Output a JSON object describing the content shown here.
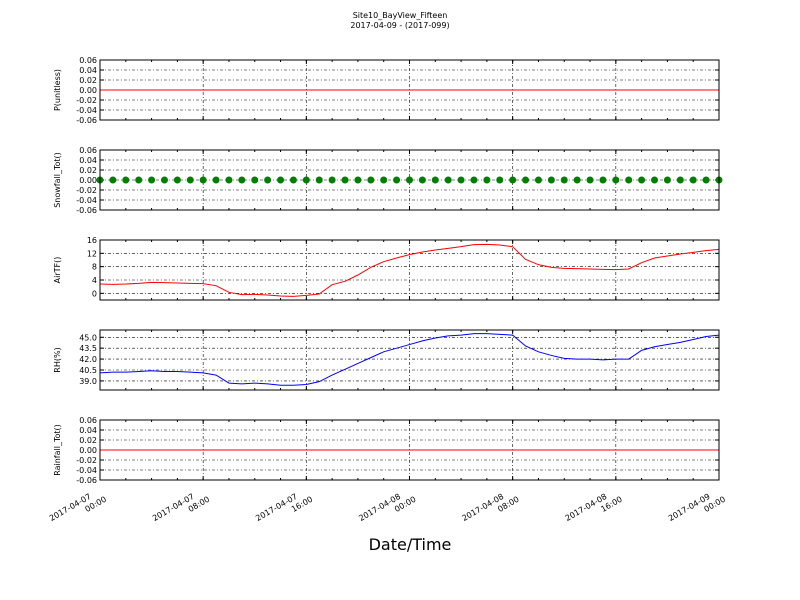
{
  "title": "Site10_BayView_Fifteen",
  "subtitle": "2017-04-09 - (2017-099)",
  "xlabel": "Date/Time",
  "x": [
    "2017-04-07 00:00",
    "2017-04-07 01:00",
    "2017-04-07 02:00",
    "2017-04-07 03:00",
    "2017-04-07 04:00",
    "2017-04-07 05:00",
    "2017-04-07 06:00",
    "2017-04-07 07:00",
    "2017-04-07 08:00",
    "2017-04-07 09:00",
    "2017-04-07 10:00",
    "2017-04-07 11:00",
    "2017-04-07 12:00",
    "2017-04-07 13:00",
    "2017-04-07 14:00",
    "2017-04-07 15:00",
    "2017-04-07 16:00",
    "2017-04-07 17:00",
    "2017-04-07 18:00",
    "2017-04-07 19:00",
    "2017-04-07 20:00",
    "2017-04-07 21:00",
    "2017-04-07 22:00",
    "2017-04-07 23:00",
    "2017-04-08 00:00",
    "2017-04-08 01:00",
    "2017-04-08 02:00",
    "2017-04-08 03:00",
    "2017-04-08 04:00",
    "2017-04-08 05:00",
    "2017-04-08 06:00",
    "2017-04-08 07:00",
    "2017-04-08 08:00",
    "2017-04-08 09:00",
    "2017-04-08 10:00",
    "2017-04-08 11:00",
    "2017-04-08 12:00",
    "2017-04-08 13:00",
    "2017-04-08 14:00",
    "2017-04-08 15:00",
    "2017-04-08 16:00",
    "2017-04-08 17:00",
    "2017-04-08 18:00",
    "2017-04-08 19:00",
    "2017-04-08 20:00",
    "2017-04-08 21:00",
    "2017-04-08 22:00",
    "2017-04-08 23:00",
    "2017-04-09 00:00"
  ],
  "xlim": [
    "2017-04-07 00:00",
    "2017-04-09 00:00"
  ],
  "xticks": [
    "2017-04-07 00:00",
    "2017-04-07 08:00",
    "2017-04-07 16:00",
    "2017-04-08 00:00",
    "2017-04-08 08:00",
    "2017-04-08 16:00",
    "2017-04-09 00:00"
  ],
  "chart_data": [
    {
      "type": "line",
      "ylabel": "P(unitless)",
      "ylim": [
        -0.06,
        0.06
      ],
      "grid": true,
      "yticks": [
        -0.06,
        -0.04,
        -0.02,
        {
          "value": 0,
          "label": "0.00"
        },
        0.02,
        0.04,
        0.06
      ],
      "series": [
        {
          "color": "#ff0000",
          "values": [
            0,
            0,
            0,
            0,
            0,
            0,
            0,
            0,
            0,
            0,
            0,
            0,
            0,
            0,
            0,
            0,
            0,
            0,
            0,
            0,
            0,
            0,
            0,
            0,
            0,
            0,
            0,
            0,
            0,
            0,
            0,
            0,
            0,
            0,
            0,
            0,
            0,
            0,
            0,
            0,
            0,
            0,
            0,
            0,
            0,
            0,
            0,
            0,
            0
          ]
        }
      ]
    },
    {
      "type": "scatter",
      "ylabel": "Snowfall_Tot()",
      "ylim": [
        -0.06,
        0.06
      ],
      "grid": true,
      "yticks": [
        -0.06,
        -0.04,
        -0.02,
        {
          "value": 0,
          "label": "0.00"
        },
        0.02,
        0.04,
        0.06
      ],
      "series": [
        {
          "color": "#008000",
          "values": [
            0,
            0,
            0,
            0,
            0,
            0,
            0,
            0,
            0,
            0,
            0,
            0,
            0,
            0,
            0,
            0,
            0,
            0,
            0,
            0,
            0,
            0,
            0,
            0,
            0,
            0,
            0,
            0,
            0,
            0,
            0,
            0,
            0,
            0,
            0,
            0,
            0,
            0,
            0,
            0,
            0,
            0,
            0,
            0,
            0,
            0,
            0,
            0,
            0
          ]
        }
      ]
    },
    {
      "type": "line",
      "ylabel": "AirTF()",
      "ylim": [
        -2,
        16
      ],
      "grid": true,
      "yticks": [
        0,
        4,
        8,
        12,
        16
      ],
      "series": [
        {
          "color": "#ff0000",
          "values": [
            2.8,
            2.7,
            2.8,
            3.0,
            3.3,
            3.2,
            3.1,
            3.0,
            2.9,
            2.3,
            0.3,
            -0.4,
            -0.3,
            -0.5,
            -0.8,
            -0.9,
            -0.6,
            -0.2,
            2.6,
            3.6,
            5.5,
            7.8,
            9.5,
            10.6,
            11.6,
            12.4,
            13.0,
            13.5,
            14.0,
            14.6,
            14.7,
            14.5,
            14.0,
            10.2,
            8.6,
            7.8,
            7.5,
            7.4,
            7.3,
            7.2,
            7.1,
            7.3,
            9.2,
            10.6,
            11.2,
            11.8,
            12.3,
            12.8,
            13.2
          ]
        }
      ]
    },
    {
      "type": "line",
      "ylabel": "RH(%)",
      "ylim": [
        37.75,
        46
      ],
      "grid": true,
      "yticks": [
        {
          "value": 39,
          "label": "39.0"
        },
        40.5,
        {
          "value": 42,
          "label": "42.0"
        },
        43.5,
        {
          "value": 45,
          "label": "45.0"
        }
      ],
      "series": [
        {
          "color": "#0000ff",
          "values": [
            40.1,
            40.2,
            40.2,
            40.3,
            40.4,
            40.3,
            40.3,
            40.2,
            40.1,
            39.8,
            38.7,
            38.6,
            38.7,
            38.6,
            38.4,
            38.4,
            38.5,
            38.9,
            39.8,
            40.6,
            41.4,
            42.2,
            43.0,
            43.5,
            44.0,
            44.5,
            44.9,
            45.2,
            45.3,
            45.5,
            45.5,
            45.4,
            45.3,
            43.8,
            43.0,
            42.5,
            42.1,
            42.0,
            42.0,
            41.9,
            42.0,
            42.0,
            43.2,
            43.7,
            44.0,
            44.3,
            44.7,
            45.1,
            45.3
          ]
        }
      ]
    },
    {
      "type": "line",
      "ylabel": "Rainfall_Tot()",
      "ylim": [
        -0.06,
        0.06
      ],
      "grid": true,
      "yticks": [
        -0.06,
        -0.04,
        -0.02,
        {
          "value": 0,
          "label": "0.00"
        },
        0.02,
        0.04,
        0.06
      ],
      "series": [
        {
          "color": "#ff0000",
          "values": [
            0,
            0,
            0,
            0,
            0,
            0,
            0,
            0,
            0,
            0,
            0,
            0,
            0,
            0,
            0,
            0,
            0,
            0,
            0,
            0,
            0,
            0,
            0,
            0,
            0,
            0,
            0,
            0,
            0,
            0,
            0,
            0,
            0,
            0,
            0,
            0,
            0,
            0,
            0,
            0,
            0,
            0,
            0,
            0,
            0,
            0,
            0,
            0,
            0
          ]
        }
      ]
    }
  ]
}
